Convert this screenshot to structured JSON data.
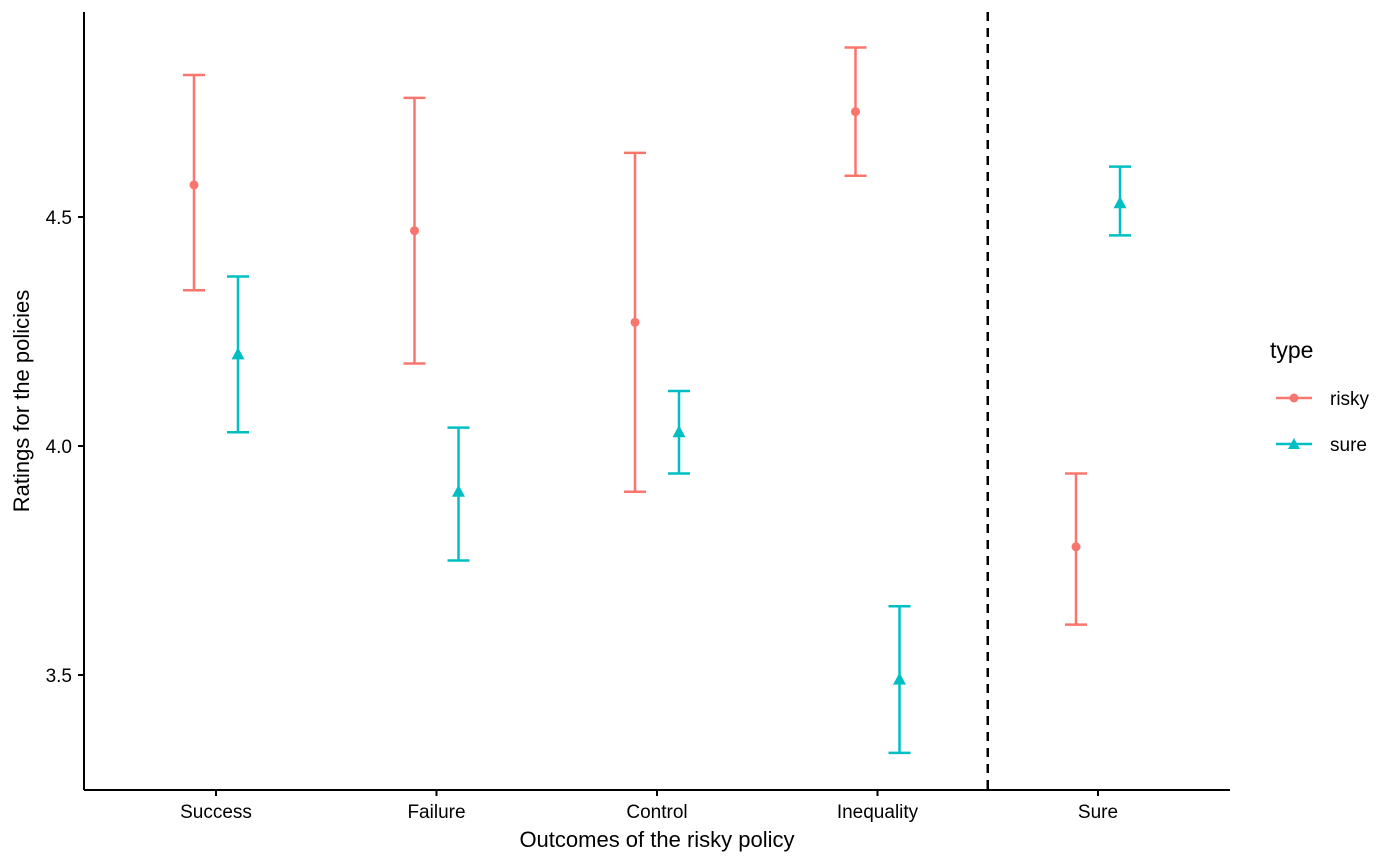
{
  "chart_data": {
    "type": "errorbar",
    "categories": [
      "Success",
      "Failure",
      "Control",
      "Inequality",
      "Sure"
    ],
    "xlabel": "Outcomes of the risky policy",
    "ylabel": "Ratings for the policies",
    "yticks": [
      "3.5",
      "4.0",
      "4.5"
    ],
    "ylim": [
      3.25,
      4.95
    ],
    "divider_after_category": "Inequality",
    "legend": {
      "title": "type",
      "position": "right"
    },
    "grid": false,
    "series": [
      {
        "name": "risky",
        "color": "#F8766D",
        "marker": "circle",
        "values": [
          4.57,
          4.47,
          4.27,
          4.73,
          3.78
        ],
        "lower": [
          4.34,
          4.18,
          3.9,
          4.59,
          3.61
        ],
        "upper": [
          4.81,
          4.76,
          4.64,
          4.87,
          3.94
        ]
      },
      {
        "name": "sure",
        "color": "#00BFC4",
        "marker": "triangle",
        "values": [
          4.2,
          3.9,
          4.03,
          3.49,
          4.53
        ],
        "lower": [
          4.03,
          3.75,
          3.94,
          3.33,
          4.46
        ],
        "upper": [
          4.37,
          4.04,
          4.12,
          3.65,
          4.61
        ]
      }
    ]
  }
}
